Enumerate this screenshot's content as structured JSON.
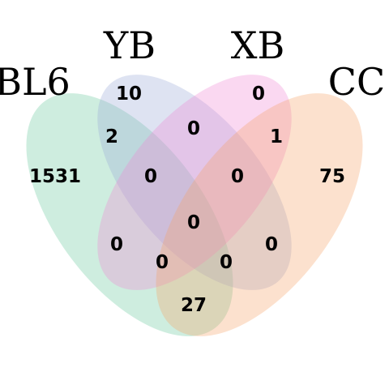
{
  "sets": [
    {
      "key": "bl6",
      "name": "BL6",
      "color": "#66C79A"
    },
    {
      "key": "yb",
      "name": "YB",
      "color": "#97A8D8"
    },
    {
      "key": "xb",
      "name": "XB",
      "color": "#EE85D2"
    },
    {
      "key": "cc",
      "name": "CC",
      "color": "#F7A367"
    }
  ],
  "regions": {
    "bl6_only": "1531",
    "yb_only": "10",
    "xb_only": "0",
    "cc_only": "75",
    "bl6_yb": "2",
    "yb_xb": "0",
    "xb_cc": "1",
    "bl6_yb_xb": "0",
    "yb_xb_cc": "0",
    "bl6_xb": "0",
    "all_four": "0",
    "yb_cc": "0",
    "bl6_xb_cc": "0",
    "bl6_yb_cc": "0",
    "bl6_cc": "27"
  }
}
